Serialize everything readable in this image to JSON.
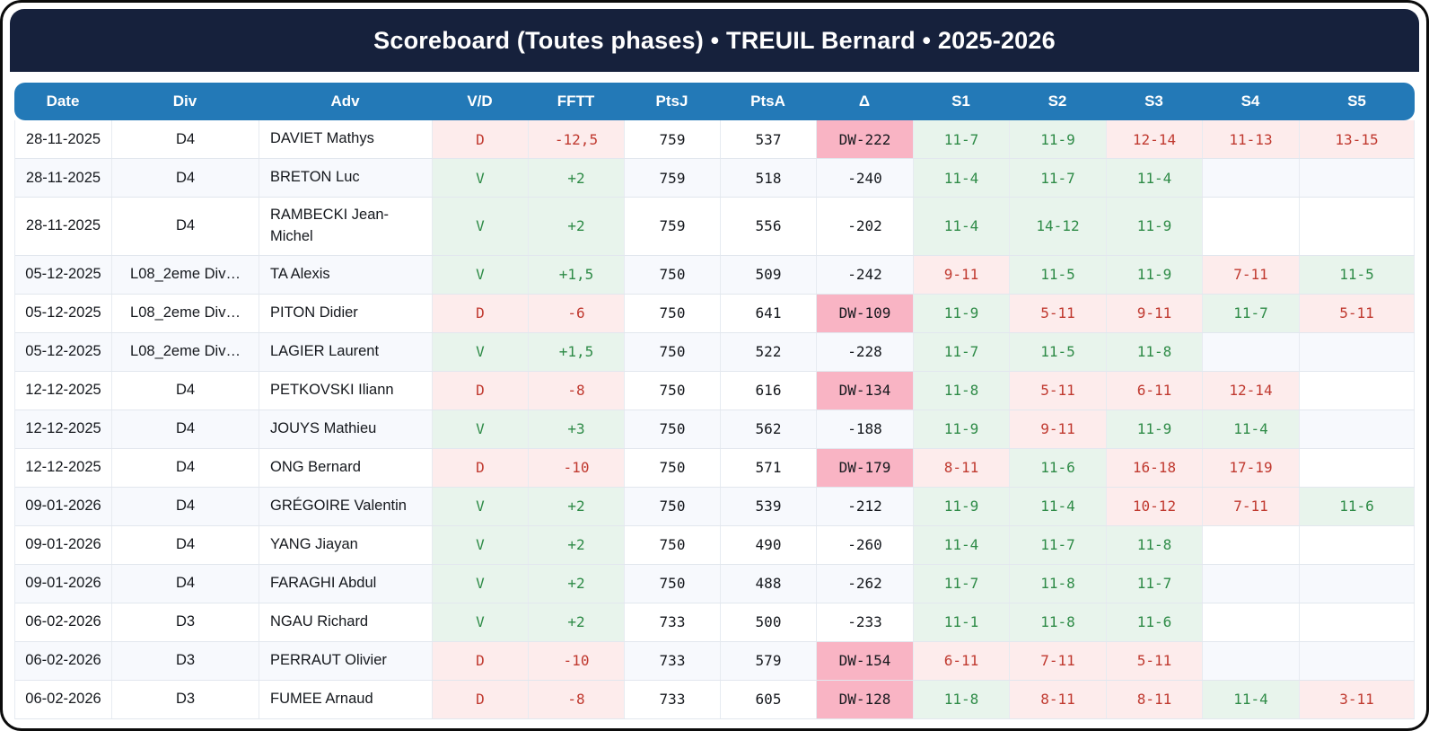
{
  "title": "Scoreboard (Toutes phases) • TREUIL Bernard • 2025-2026",
  "columns": [
    "Date",
    "Div",
    "Adv",
    "V/D",
    "FFTT",
    "PtsJ",
    "PtsA",
    "Δ",
    "S1",
    "S2",
    "S3",
    "S4",
    "S5"
  ],
  "colors": {
    "title_bar_bg": "#16213C",
    "header_bg": "#2379B7",
    "win_bg": "#e8f4ec",
    "loss_bg": "#fdecec",
    "delta_loss_bg": "#F9B4C4",
    "win_text": "#2e8b47",
    "loss_text": "#c0392f",
    "row_alt_bg": "#f7f9fd"
  },
  "chart_data": {
    "type": "table",
    "title": "Scoreboard (Toutes phases) • TREUIL Bernard • 2025-2026",
    "columns": [
      "Date",
      "Div",
      "Adv",
      "V/D",
      "FFTT",
      "PtsJ",
      "PtsA",
      "Δ",
      "S1",
      "S2",
      "S3",
      "S4",
      "S5"
    ]
  },
  "rows": [
    {
      "date": "28-11-2025",
      "div": "D4",
      "adv": "DAVIET Mathys",
      "vd": "D",
      "fftt": "-12,5",
      "ptsj": "759",
      "ptsa": "537",
      "delta": "DW-222",
      "delta_type": "dw",
      "sets": [
        {
          "v": "11-7",
          "r": "w"
        },
        {
          "v": "11-9",
          "r": "w"
        },
        {
          "v": "12-14",
          "r": "l"
        },
        {
          "v": "11-13",
          "r": "l"
        },
        {
          "v": "13-15",
          "r": "l"
        }
      ]
    },
    {
      "date": "28-11-2025",
      "div": "D4",
      "adv": "BRETON Luc",
      "vd": "V",
      "fftt": "+2",
      "ptsj": "759",
      "ptsa": "518",
      "delta": "-240",
      "delta_type": "n",
      "sets": [
        {
          "v": "11-4",
          "r": "w"
        },
        {
          "v": "11-7",
          "r": "w"
        },
        {
          "v": "11-4",
          "r": "w"
        },
        {
          "v": "",
          "r": ""
        },
        {
          "v": "",
          "r": ""
        }
      ]
    },
    {
      "date": "28-11-2025",
      "div": "D4",
      "adv": "RAMBECKI Jean-Michel",
      "vd": "V",
      "fftt": "+2",
      "ptsj": "759",
      "ptsa": "556",
      "delta": "-202",
      "delta_type": "n",
      "sets": [
        {
          "v": "11-4",
          "r": "w"
        },
        {
          "v": "14-12",
          "r": "w"
        },
        {
          "v": "11-9",
          "r": "w"
        },
        {
          "v": "",
          "r": ""
        },
        {
          "v": "",
          "r": ""
        }
      ]
    },
    {
      "date": "05-12-2025",
      "div": "L08_2eme Div…",
      "adv": "TA Alexis",
      "vd": "V",
      "fftt": "+1,5",
      "ptsj": "750",
      "ptsa": "509",
      "delta": "-242",
      "delta_type": "n",
      "sets": [
        {
          "v": "9-11",
          "r": "l"
        },
        {
          "v": "11-5",
          "r": "w"
        },
        {
          "v": "11-9",
          "r": "w"
        },
        {
          "v": "7-11",
          "r": "l"
        },
        {
          "v": "11-5",
          "r": "w"
        }
      ]
    },
    {
      "date": "05-12-2025",
      "div": "L08_2eme Div…",
      "adv": "PITON Didier",
      "vd": "D",
      "fftt": "-6",
      "ptsj": "750",
      "ptsa": "641",
      "delta": "DW-109",
      "delta_type": "dw",
      "sets": [
        {
          "v": "11-9",
          "r": "w"
        },
        {
          "v": "5-11",
          "r": "l"
        },
        {
          "v": "9-11",
          "r": "l"
        },
        {
          "v": "11-7",
          "r": "w"
        },
        {
          "v": "5-11",
          "r": "l"
        }
      ]
    },
    {
      "date": "05-12-2025",
      "div": "L08_2eme Div…",
      "adv": "LAGIER Laurent",
      "vd": "V",
      "fftt": "+1,5",
      "ptsj": "750",
      "ptsa": "522",
      "delta": "-228",
      "delta_type": "n",
      "sets": [
        {
          "v": "11-7",
          "r": "w"
        },
        {
          "v": "11-5",
          "r": "w"
        },
        {
          "v": "11-8",
          "r": "w"
        },
        {
          "v": "",
          "r": ""
        },
        {
          "v": "",
          "r": ""
        }
      ]
    },
    {
      "date": "12-12-2025",
      "div": "D4",
      "adv": "PETKOVSKI Iliann",
      "vd": "D",
      "fftt": "-8",
      "ptsj": "750",
      "ptsa": "616",
      "delta": "DW-134",
      "delta_type": "dw",
      "sets": [
        {
          "v": "11-8",
          "r": "w"
        },
        {
          "v": "5-11",
          "r": "l"
        },
        {
          "v": "6-11",
          "r": "l"
        },
        {
          "v": "12-14",
          "r": "l"
        },
        {
          "v": "",
          "r": ""
        }
      ]
    },
    {
      "date": "12-12-2025",
      "div": "D4",
      "adv": "JOUYS Mathieu",
      "vd": "V",
      "fftt": "+3",
      "ptsj": "750",
      "ptsa": "562",
      "delta": "-188",
      "delta_type": "n",
      "sets": [
        {
          "v": "11-9",
          "r": "w"
        },
        {
          "v": "9-11",
          "r": "l"
        },
        {
          "v": "11-9",
          "r": "w"
        },
        {
          "v": "11-4",
          "r": "w"
        },
        {
          "v": "",
          "r": ""
        }
      ]
    },
    {
      "date": "12-12-2025",
      "div": "D4",
      "adv": "ONG Bernard",
      "vd": "D",
      "fftt": "-10",
      "ptsj": "750",
      "ptsa": "571",
      "delta": "DW-179",
      "delta_type": "dw",
      "sets": [
        {
          "v": "8-11",
          "r": "l"
        },
        {
          "v": "11-6",
          "r": "w"
        },
        {
          "v": "16-18",
          "r": "l"
        },
        {
          "v": "17-19",
          "r": "l"
        },
        {
          "v": "",
          "r": ""
        }
      ]
    },
    {
      "date": "09-01-2026",
      "div": "D4",
      "adv": "GRÉGOIRE Valentin",
      "vd": "V",
      "fftt": "+2",
      "ptsj": "750",
      "ptsa": "539",
      "delta": "-212",
      "delta_type": "n",
      "sets": [
        {
          "v": "11-9",
          "r": "w"
        },
        {
          "v": "11-4",
          "r": "w"
        },
        {
          "v": "10-12",
          "r": "l"
        },
        {
          "v": "7-11",
          "r": "l"
        },
        {
          "v": "11-6",
          "r": "w"
        }
      ]
    },
    {
      "date": "09-01-2026",
      "div": "D4",
      "adv": "YANG Jiayan",
      "vd": "V",
      "fftt": "+2",
      "ptsj": "750",
      "ptsa": "490",
      "delta": "-260",
      "delta_type": "n",
      "sets": [
        {
          "v": "11-4",
          "r": "w"
        },
        {
          "v": "11-7",
          "r": "w"
        },
        {
          "v": "11-8",
          "r": "w"
        },
        {
          "v": "",
          "r": ""
        },
        {
          "v": "",
          "r": ""
        }
      ]
    },
    {
      "date": "09-01-2026",
      "div": "D4",
      "adv": "FARAGHI Abdul",
      "vd": "V",
      "fftt": "+2",
      "ptsj": "750",
      "ptsa": "488",
      "delta": "-262",
      "delta_type": "n",
      "sets": [
        {
          "v": "11-7",
          "r": "w"
        },
        {
          "v": "11-8",
          "r": "w"
        },
        {
          "v": "11-7",
          "r": "w"
        },
        {
          "v": "",
          "r": ""
        },
        {
          "v": "",
          "r": ""
        }
      ]
    },
    {
      "date": "06-02-2026",
      "div": "D3",
      "adv": "NGAU Richard",
      "vd": "V",
      "fftt": "+2",
      "ptsj": "733",
      "ptsa": "500",
      "delta": "-233",
      "delta_type": "n",
      "sets": [
        {
          "v": "11-1",
          "r": "w"
        },
        {
          "v": "11-8",
          "r": "w"
        },
        {
          "v": "11-6",
          "r": "w"
        },
        {
          "v": "",
          "r": ""
        },
        {
          "v": "",
          "r": ""
        }
      ]
    },
    {
      "date": "06-02-2026",
      "div": "D3",
      "adv": "PERRAUT Olivier",
      "vd": "D",
      "fftt": "-10",
      "ptsj": "733",
      "ptsa": "579",
      "delta": "DW-154",
      "delta_type": "dw",
      "sets": [
        {
          "v": "6-11",
          "r": "l"
        },
        {
          "v": "7-11",
          "r": "l"
        },
        {
          "v": "5-11",
          "r": "l"
        },
        {
          "v": "",
          "r": ""
        },
        {
          "v": "",
          "r": ""
        }
      ]
    },
    {
      "date": "06-02-2026",
      "div": "D3",
      "adv": "FUMEE Arnaud",
      "vd": "D",
      "fftt": "-8",
      "ptsj": "733",
      "ptsa": "605",
      "delta": "DW-128",
      "delta_type": "dw",
      "sets": [
        {
          "v": "11-8",
          "r": "w"
        },
        {
          "v": "8-11",
          "r": "l"
        },
        {
          "v": "8-11",
          "r": "l"
        },
        {
          "v": "11-4",
          "r": "w"
        },
        {
          "v": "3-11",
          "r": "l"
        }
      ]
    }
  ]
}
